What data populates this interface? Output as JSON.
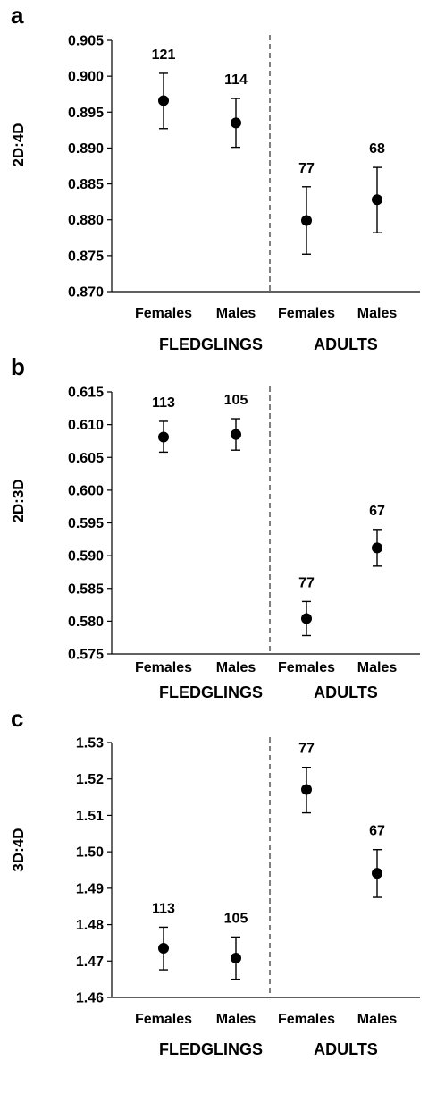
{
  "chart_data": [
    {
      "type": "scatter",
      "panel": "a",
      "ylabel": "2D:4D",
      "ylim": [
        0.87,
        0.905
      ],
      "yticks": [
        "0.870",
        "0.875",
        "0.880",
        "0.885",
        "0.890",
        "0.895",
        "0.900",
        "0.905"
      ],
      "categories": [
        "Females",
        "Males",
        "Females",
        "Males"
      ],
      "groups": [
        "FLEDGLINGS",
        "ADULTS"
      ],
      "values": [
        0.8966,
        0.8935,
        0.8799,
        0.8828
      ],
      "err_low": [
        0.8927,
        0.8901,
        0.8752,
        0.8782
      ],
      "err_high": [
        0.9004,
        0.8969,
        0.8846,
        0.8873
      ],
      "n": [
        "121",
        "114",
        "77",
        "68"
      ],
      "grid": false
    },
    {
      "type": "scatter",
      "panel": "b",
      "ylabel": "2D:3D",
      "ylim": [
        0.575,
        0.615
      ],
      "yticks": [
        "0.575",
        "0.580",
        "0.585",
        "0.590",
        "0.595",
        "0.600",
        "0.605",
        "0.610",
        "0.615"
      ],
      "categories": [
        "Females",
        "Males",
        "Females",
        "Males"
      ],
      "groups": [
        "FLEDGLINGS",
        "ADULTS"
      ],
      "values": [
        0.6081,
        0.6085,
        0.5804,
        0.5912
      ],
      "err_low": [
        0.6058,
        0.6061,
        0.5778,
        0.5884
      ],
      "err_high": [
        0.6105,
        0.6109,
        0.583,
        0.594
      ],
      "n": [
        "113",
        "105",
        "77",
        "67"
      ],
      "grid": false
    },
    {
      "type": "scatter",
      "panel": "c",
      "ylabel": "3D:4D",
      "ylim": [
        1.46,
        1.53
      ],
      "yticks": [
        "1.46",
        "1.47",
        "1.48",
        "1.49",
        "1.50",
        "1.51",
        "1.52",
        "1.53"
      ],
      "categories": [
        "Females",
        "Males",
        "Females",
        "Males"
      ],
      "groups": [
        "FLEDGLINGS",
        "ADULTS"
      ],
      "values": [
        1.4735,
        1.4708,
        1.5171,
        1.4941
      ],
      "err_low": [
        1.4676,
        1.465,
        1.5107,
        1.4875
      ],
      "err_high": [
        1.4793,
        1.4766,
        1.5232,
        1.5006
      ],
      "n": [
        "113",
        "105",
        "77",
        "67"
      ],
      "grid": false
    }
  ]
}
